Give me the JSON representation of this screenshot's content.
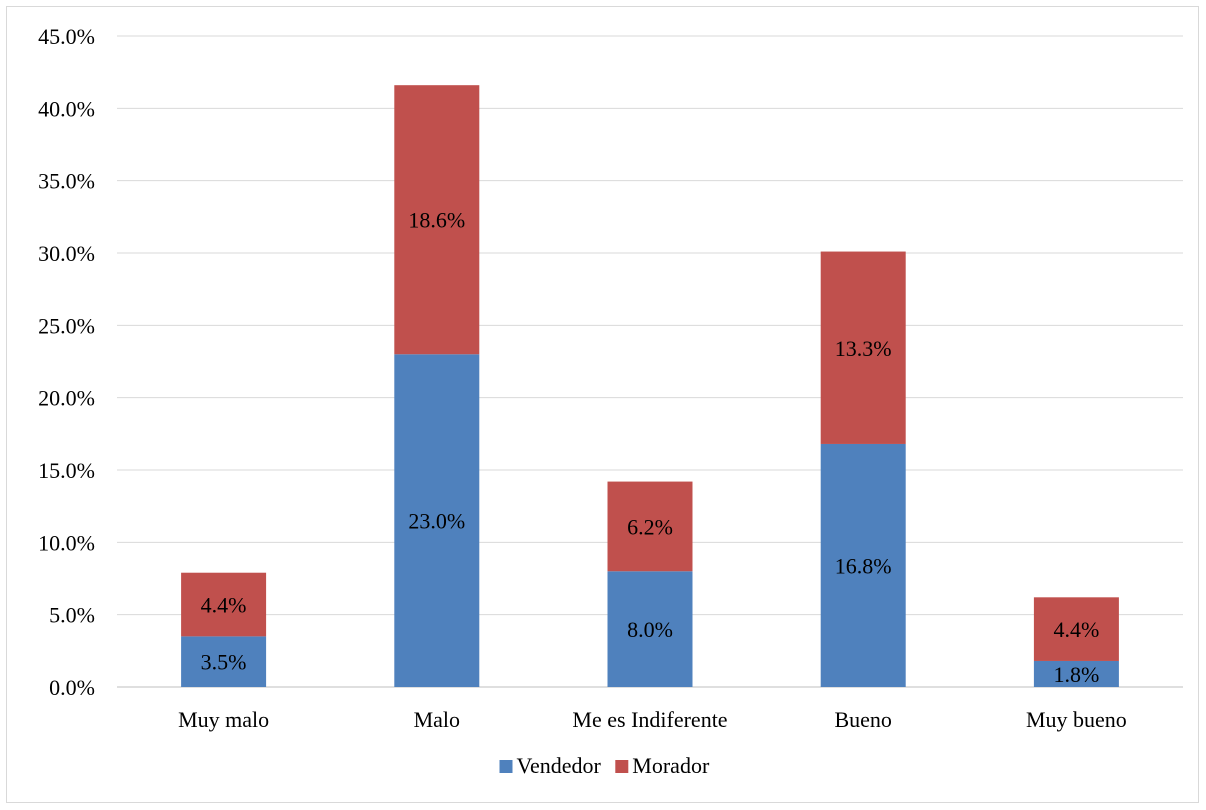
{
  "chart_data": {
    "type": "bar",
    "stacked": true,
    "categories": [
      "Muy malo",
      "Malo",
      "Me es Indiferente",
      "Bueno",
      "Muy bueno"
    ],
    "series": [
      {
        "name": "Vendedor",
        "values": [
          3.5,
          23.0,
          8.0,
          16.8,
          1.8
        ],
        "color": "#4f81bd"
      },
      {
        "name": "Morador",
        "values": [
          4.4,
          18.6,
          6.2,
          13.3,
          4.4
        ],
        "color": "#c0504d"
      }
    ],
    "ylim": [
      0,
      45
    ],
    "yticks": [
      0,
      5,
      10,
      15,
      20,
      25,
      30,
      35,
      40,
      45
    ],
    "y_format": "percent_1dp",
    "grid": true,
    "legend": "bottom"
  }
}
